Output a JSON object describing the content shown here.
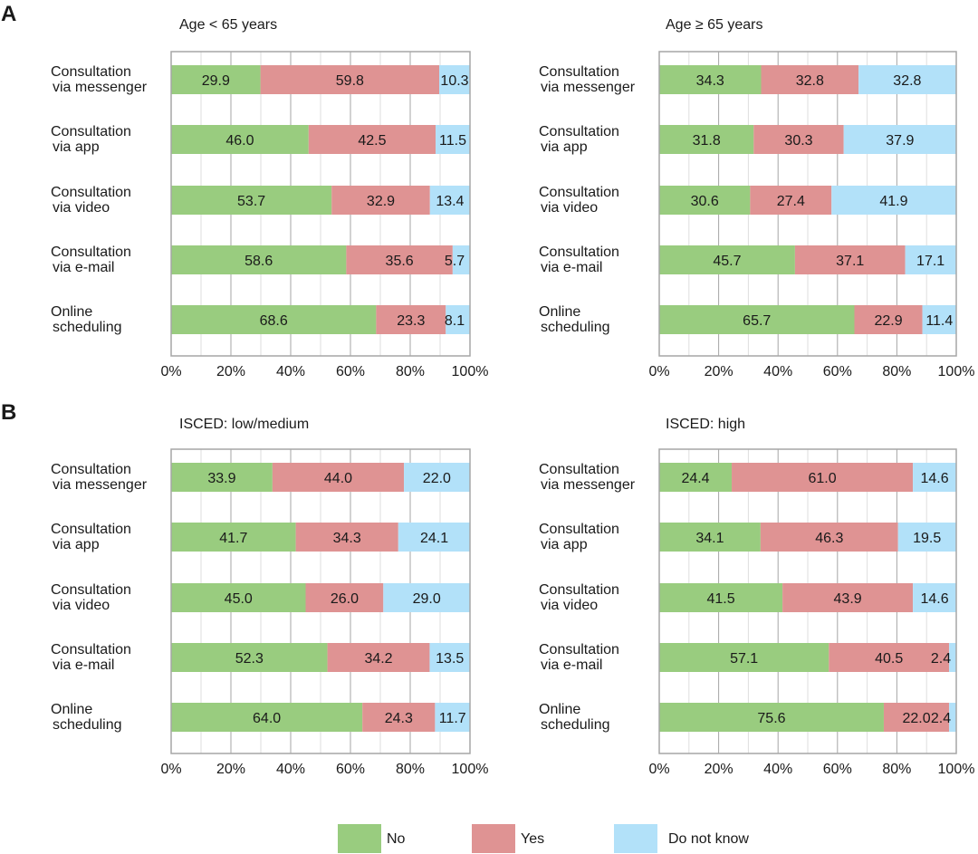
{
  "panels": [
    {
      "letter": "A",
      "charts": [
        0,
        1
      ]
    },
    {
      "letter": "B",
      "charts": [
        2,
        3
      ]
    }
  ],
  "colors": {
    "No": "#99cc7f",
    "Yes": "#df9393",
    "Do not know": "#b2e1f9",
    "frame": "#a6a6a6",
    "grid": "#a6a6a6",
    "minor_grid": "#dedede"
  },
  "legend": [
    "No",
    "Yes",
    "Do not know"
  ],
  "chart_data": [
    {
      "type": "bar",
      "orientation": "horizontal",
      "stacked": true,
      "title": "Age < 65 years",
      "categories": [
        [
          "Consultation",
          "via messenger"
        ],
        [
          "Consultation",
          "via app"
        ],
        [
          "Consultation",
          "via video"
        ],
        [
          "Consultation",
          "via e-mail"
        ],
        [
          "Online",
          "scheduling"
        ]
      ],
      "series": [
        {
          "name": "No",
          "values": [
            29.9,
            46.0,
            53.7,
            58.6,
            68.6
          ],
          "labels": [
            "29.9",
            "46.0",
            "53.7",
            "58.6",
            "68.6"
          ]
        },
        {
          "name": "Yes",
          "values": [
            59.8,
            42.5,
            32.9,
            35.6,
            23.3
          ],
          "labels": [
            "59.8",
            "42.5",
            "32.9",
            "35.6",
            "23.3"
          ]
        },
        {
          "name": "Do not know",
          "values": [
            10.3,
            11.5,
            13.4,
            5.7,
            8.1
          ],
          "labels": [
            "10.3",
            "11.5",
            "13.4",
            "5.7",
            "8.1"
          ]
        }
      ],
      "xlim": [
        0,
        100
      ],
      "xticks": [
        "0%",
        "20%",
        "40%",
        "60%",
        "80%",
        "100%"
      ]
    },
    {
      "type": "bar",
      "orientation": "horizontal",
      "stacked": true,
      "title": "Age ≥ 65 years",
      "categories": [
        [
          "Consultation",
          "via messenger"
        ],
        [
          "Consultation",
          "via app"
        ],
        [
          "Consultation",
          "via video"
        ],
        [
          "Consultation",
          "via e-mail"
        ],
        [
          "Online",
          "scheduling"
        ]
      ],
      "series": [
        {
          "name": "No",
          "values": [
            34.3,
            31.8,
            30.6,
            45.7,
            65.7
          ],
          "labels": [
            "34.3",
            "31.8",
            "30.6",
            "45.7",
            "65.7"
          ]
        },
        {
          "name": "Yes",
          "values": [
            32.8,
            30.3,
            27.4,
            37.1,
            22.9
          ],
          "labels": [
            "32.8",
            "30.3",
            "27.4",
            "37.1",
            "22.9"
          ]
        },
        {
          "name": "Do not know",
          "values": [
            32.8,
            37.9,
            41.9,
            17.1,
            11.4
          ],
          "labels": [
            "32.8",
            "37.9",
            "41.9",
            "17.1",
            "11.4"
          ]
        }
      ],
      "xlim": [
        0,
        100
      ],
      "xticks": [
        "0%",
        "20%",
        "40%",
        "60%",
        "80%",
        "100%"
      ]
    },
    {
      "type": "bar",
      "orientation": "horizontal",
      "stacked": true,
      "title": "ISCED: low/medium",
      "categories": [
        [
          "Consultation",
          "via messenger"
        ],
        [
          "Consultation",
          "via app"
        ],
        [
          "Consultation",
          "via video"
        ],
        [
          "Consultation",
          "via e-mail"
        ],
        [
          "Online",
          "scheduling"
        ]
      ],
      "series": [
        {
          "name": "No",
          "values": [
            33.9,
            41.7,
            45.0,
            52.3,
            64.0
          ],
          "labels": [
            "33.9",
            "41.7",
            "45.0",
            "52.3",
            "64.0"
          ]
        },
        {
          "name": "Yes",
          "values": [
            44.0,
            34.3,
            26.0,
            34.2,
            24.3
          ],
          "labels": [
            "44.0",
            "34.3",
            "26.0",
            "34.2",
            "24.3"
          ]
        },
        {
          "name": "Do not know",
          "values": [
            22.0,
            24.1,
            29.0,
            13.5,
            11.7
          ],
          "labels": [
            "22.0",
            "24.1",
            "29.0",
            "13.5",
            "11.7"
          ]
        }
      ],
      "xlim": [
        0,
        100
      ],
      "xticks": [
        "0%",
        "20%",
        "40%",
        "60%",
        "80%",
        "100%"
      ]
    },
    {
      "type": "bar",
      "orientation": "horizontal",
      "stacked": true,
      "title": "ISCED: high",
      "categories": [
        [
          "Consultation",
          "via messenger"
        ],
        [
          "Consultation",
          "via app"
        ],
        [
          "Consultation",
          "via video"
        ],
        [
          "Consultation",
          "via e-mail"
        ],
        [
          "Online",
          "scheduling"
        ]
      ],
      "series": [
        {
          "name": "No",
          "values": [
            24.4,
            34.1,
            41.5,
            57.1,
            75.6
          ],
          "labels": [
            "24.4",
            "34.1",
            "41.5",
            "57.1",
            "75.6"
          ]
        },
        {
          "name": "Yes",
          "values": [
            61.0,
            46.3,
            43.9,
            40.5,
            22.0
          ],
          "labels": [
            "61.0",
            "46.3",
            "43.9",
            "40.5",
            "22.0"
          ]
        },
        {
          "name": "Do not know",
          "values": [
            14.6,
            19.5,
            14.6,
            2.4,
            2.4
          ],
          "labels": [
            "14.6",
            "19.5",
            "14.6",
            "2.4",
            "2.4"
          ]
        }
      ],
      "xlim": [
        0,
        100
      ],
      "xticks": [
        "0%",
        "20%",
        "40%",
        "60%",
        "80%",
        "100%"
      ]
    }
  ]
}
